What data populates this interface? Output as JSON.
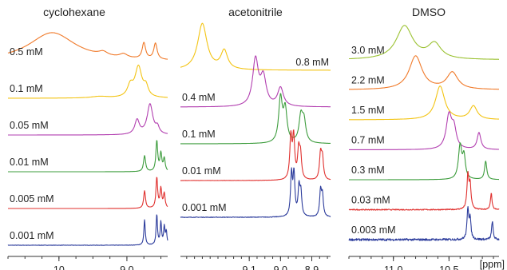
{
  "chart_data": {
    "type": "line",
    "x_unit": "ppm",
    "x_axis_reversed": true,
    "panels": [
      {
        "title": "cyclohexane",
        "xlim": [
          10.75,
          8.4
        ],
        "ticks": [
          {
            "value": 10,
            "label": "10"
          },
          {
            "value": 9.0,
            "label": "9.0"
          }
        ],
        "show_unit": false,
        "traces": [
          {
            "label": "0.5 mM",
            "color": "#f07a2a",
            "noise": 0.0,
            "peaks": [
              [
                10.1,
                0.9,
                0.42
              ],
              [
                9.35,
                0.12,
                0.08
              ],
              [
                9.05,
                0.12,
                0.07
              ],
              [
                8.75,
                0.5,
                0.03
              ],
              [
                8.58,
                0.5,
                0.03
              ]
            ]
          },
          {
            "label": "0.1 mM",
            "color": "#f3c414",
            "noise": 0.0,
            "peaks": [
              [
                9.4,
                0.05,
                0.15
              ],
              [
                8.95,
                0.35,
                0.05
              ],
              [
                8.83,
                0.95,
                0.06
              ],
              [
                8.72,
                0.3,
                0.04
              ]
            ]
          },
          {
            "label": "0.05 mM",
            "color": "#b23fb0",
            "noise": 0.0,
            "peaks": [
              [
                8.85,
                0.45,
                0.04
              ],
              [
                8.66,
                0.95,
                0.05
              ],
              [
                8.55,
                0.2,
                0.03
              ]
            ]
          },
          {
            "label": "0.01 mM",
            "color": "#3c9c3c",
            "noise": 0.0,
            "peaks": [
              [
                8.74,
                0.5,
                0.018
              ],
              [
                8.56,
                0.95,
                0.016
              ],
              [
                8.5,
                0.55,
                0.016
              ],
              [
                8.45,
                0.4,
                0.016
              ]
            ]
          },
          {
            "label": "0.005 mM",
            "color": "#e0302e",
            "noise": 0.0,
            "peaks": [
              [
                8.74,
                0.55,
                0.016
              ],
              [
                8.56,
                0.95,
                0.015
              ],
              [
                8.5,
                0.6,
                0.015
              ],
              [
                8.45,
                0.45,
                0.015
              ]
            ]
          },
          {
            "label": "0.001 mM",
            "color": "#2c3c9c",
            "noise": 0.05,
            "peaks": [
              [
                8.74,
                0.8,
                0.012
              ],
              [
                8.56,
                0.95,
                0.012
              ],
              [
                8.5,
                0.7,
                0.012
              ],
              [
                8.45,
                0.55,
                0.012
              ],
              [
                8.42,
                0.4,
                0.012
              ]
            ]
          }
        ]
      },
      {
        "title": "acetonitrile",
        "xlim": [
          9.32,
          8.84
        ],
        "ticks": [
          {
            "value": 9.1,
            "label": "9.1"
          },
          {
            "value": 9.0,
            "label": "9.0"
          },
          {
            "value": 8.9,
            "label": "8.9"
          }
        ],
        "show_unit": false,
        "traces": [
          {
            "label": "0.8 mM",
            "color": "#f3c414",
            "noise": 0.0,
            "peaks": [
              [
                9.25,
                1.0,
                0.018
              ],
              [
                9.18,
                0.4,
                0.013
              ]
            ]
          },
          {
            "label": "0.4 mM",
            "color": "#b23fb0",
            "noise": 0.0,
            "peaks": [
              [
                9.08,
                1.0,
                0.011
              ],
              [
                9.055,
                0.6,
                0.011
              ],
              [
                9.0,
                0.4,
                0.011
              ]
            ]
          },
          {
            "label": "0.1 mM",
            "color": "#3c9c3c",
            "noise": 0.0,
            "peaks": [
              [
                9.0,
                0.95,
                0.007
              ],
              [
                8.985,
                0.7,
                0.007
              ],
              [
                8.935,
                0.55,
                0.007
              ],
              [
                8.925,
                0.45,
                0.007
              ]
            ]
          },
          {
            "label": "0.01 mM",
            "color": "#e0302e",
            "noise": 0.02,
            "peaks": [
              [
                8.967,
                0.9,
                0.004
              ],
              [
                8.958,
                0.9,
                0.004
              ],
              [
                8.942,
                0.6,
                0.004
              ],
              [
                8.936,
                0.5,
                0.004
              ],
              [
                8.872,
                0.55,
                0.004
              ],
              [
                8.866,
                0.45,
                0.004
              ]
            ]
          },
          {
            "label": "0.001 mM",
            "color": "#2c3c9c",
            "noise": 0.05,
            "peaks": [
              [
                8.965,
                0.9,
                0.0035
              ],
              [
                8.957,
                0.9,
                0.0035
              ],
              [
                8.941,
                0.6,
                0.0035
              ],
              [
                8.935,
                0.5,
                0.0035
              ],
              [
                8.872,
                0.55,
                0.0035
              ],
              [
                8.866,
                0.45,
                0.0035
              ]
            ]
          }
        ]
      },
      {
        "title": "DMSO",
        "xlim": [
          11.4,
          10.05
        ],
        "ticks": [
          {
            "value": 11.0,
            "label": "11.0"
          },
          {
            "value": 10.5,
            "label": "10.5"
          }
        ],
        "show_unit": true,
        "unit_label": "[ppm]",
        "traces": [
          {
            "label": "3.0 mM",
            "color": "#9bc232",
            "noise": 0.0,
            "peaks": [
              [
                10.9,
                1.0,
                0.09
              ],
              [
                10.63,
                0.45,
                0.07
              ]
            ]
          },
          {
            "label": "2.2 mM",
            "color": "#f07a2a",
            "noise": 0.0,
            "peaks": [
              [
                10.8,
                1.0,
                0.07
              ],
              [
                10.47,
                0.5,
                0.06
              ]
            ]
          },
          {
            "label": "1.5 mM",
            "color": "#f3c414",
            "noise": 0.0,
            "peaks": [
              [
                10.58,
                1.0,
                0.05
              ],
              [
                10.28,
                0.4,
                0.04
              ]
            ]
          },
          {
            "label": "0.7 mM",
            "color": "#b23fb0",
            "noise": 0.0,
            "peaks": [
              [
                10.5,
                1.0,
                0.03
              ],
              [
                10.455,
                0.55,
                0.025
              ],
              [
                10.23,
                0.5,
                0.02
              ]
            ]
          },
          {
            "label": "0.3 mM",
            "color": "#3c9c3c",
            "noise": 0.0,
            "peaks": [
              [
                10.4,
                1.0,
                0.018
              ],
              [
                10.365,
                0.65,
                0.015
              ],
              [
                10.17,
                0.55,
                0.012
              ]
            ]
          },
          {
            "label": "0.03 mM",
            "color": "#e0302e",
            "noise": 0.12,
            "peaks": [
              [
                10.33,
                1.0,
                0.01
              ],
              [
                10.31,
                0.7,
                0.01
              ],
              [
                10.12,
                0.5,
                0.008
              ]
            ]
          },
          {
            "label": "0.003 mM",
            "color": "#2c3c9c",
            "noise": 0.25,
            "peaks": [
              [
                10.33,
                0.9,
                0.009
              ],
              [
                10.31,
                0.6,
                0.009
              ],
              [
                10.11,
                0.55,
                0.008
              ]
            ]
          }
        ]
      }
    ]
  }
}
